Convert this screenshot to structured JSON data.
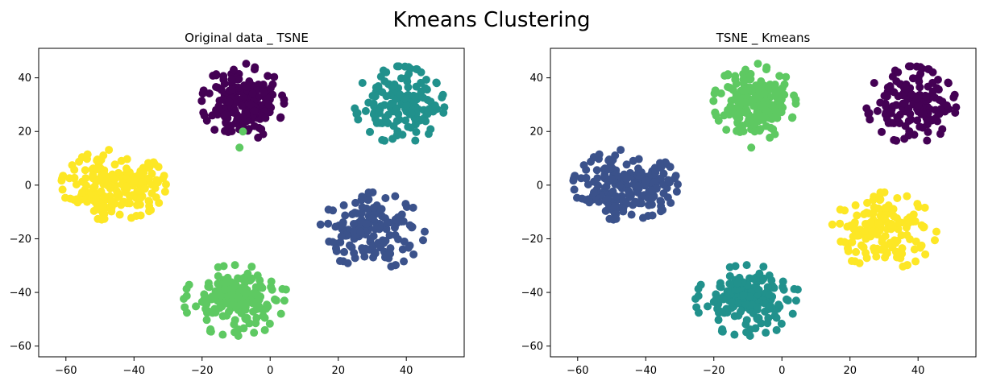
{
  "figure": {
    "title": "Kmeans Clustering"
  },
  "chart_data": [
    {
      "type": "scatter",
      "title": "Original data _ TSNE",
      "xlabel": "",
      "ylabel": "",
      "xlim": [
        -68,
        57
      ],
      "ylim": [
        -64,
        51
      ],
      "xticks": [
        -60,
        -40,
        -20,
        0,
        20,
        40
      ],
      "yticks": [
        -60,
        -40,
        -20,
        0,
        20,
        40
      ],
      "grid": false,
      "legend": "none",
      "clusters": [
        {
          "color": "#440154",
          "center": [
            -8,
            31
          ],
          "spread": [
            5.5,
            6.5
          ],
          "count": 190,
          "seed": 11
        },
        {
          "color": "#21918c",
          "center": [
            38,
            30
          ],
          "spread": [
            6,
            6.5
          ],
          "count": 150,
          "seed": 23
        },
        {
          "color": "#fde725",
          "center": [
            -46,
            0
          ],
          "spread": [
            7,
            6
          ],
          "count": 200,
          "seed": 37
        },
        {
          "color": "#3b528b",
          "center": [
            30,
            -17
          ],
          "spread": [
            7,
            6.5
          ],
          "count": 150,
          "seed": 41
        },
        {
          "color": "#5ec962",
          "center": [
            -10,
            -43
          ],
          "spread": [
            7,
            6
          ],
          "count": 180,
          "seed": 53
        }
      ],
      "extra_points": [
        {
          "x": -8,
          "y": 20,
          "color": "#5ec962"
        },
        {
          "x": -9,
          "y": 14,
          "color": "#5ec962"
        }
      ]
    },
    {
      "type": "scatter",
      "title": "TSNE _ Kmeans",
      "xlabel": "",
      "ylabel": "",
      "xlim": [
        -68,
        57
      ],
      "ylim": [
        -64,
        51
      ],
      "xticks": [
        -60,
        -40,
        -20,
        0,
        20,
        40
      ],
      "yticks": [
        -60,
        -40,
        -20,
        0,
        20,
        40
      ],
      "grid": false,
      "legend": "none",
      "clusters": [
        {
          "color": "#5ec962",
          "center": [
            -8,
            31
          ],
          "spread": [
            5.5,
            6.5
          ],
          "count": 190,
          "seed": 11
        },
        {
          "color": "#440154",
          "center": [
            38,
            30
          ],
          "spread": [
            6,
            6.5
          ],
          "count": 150,
          "seed": 23
        },
        {
          "color": "#3b528b",
          "center": [
            -46,
            0
          ],
          "spread": [
            7,
            6
          ],
          "count": 200,
          "seed": 37
        },
        {
          "color": "#fde725",
          "center": [
            30,
            -17
          ],
          "spread": [
            7,
            6.5
          ],
          "count": 150,
          "seed": 41
        },
        {
          "color": "#21918c",
          "center": [
            -10,
            -43
          ],
          "spread": [
            7,
            6
          ],
          "count": 180,
          "seed": 53
        }
      ],
      "extra_points": [
        {
          "x": -8,
          "y": 20,
          "color": "#5ec962"
        },
        {
          "x": -9,
          "y": 14,
          "color": "#5ec962"
        }
      ]
    }
  ]
}
